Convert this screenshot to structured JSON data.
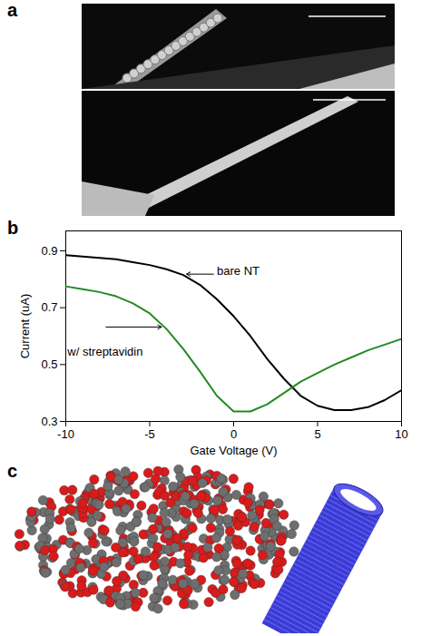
{
  "panel_labels": [
    "a",
    "b",
    "c"
  ],
  "chart_data": {
    "type": "line",
    "x": [
      -10,
      -9,
      -8,
      -7,
      -6,
      -5,
      -4,
      -3,
      -2,
      -1,
      0,
      1,
      2,
      3,
      4,
      5,
      6,
      7,
      8,
      9,
      10
    ],
    "series": [
      {
        "color": "#000000",
        "values": [
          0.885,
          0.88,
          0.875,
          0.87,
          0.86,
          0.85,
          0.835,
          0.815,
          0.78,
          0.73,
          0.67,
          0.6,
          0.52,
          0.45,
          0.39,
          0.355,
          0.34,
          0.34,
          0.35,
          0.375,
          0.41
        ]
      },
      {
        "color": "#228b22",
        "values": [
          0.775,
          0.765,
          0.755,
          0.74,
          0.715,
          0.68,
          0.625,
          0.555,
          0.475,
          0.39,
          0.335,
          0.335,
          0.36,
          0.4,
          0.44,
          0.47,
          0.5,
          0.525,
          0.55,
          0.57,
          0.59
        ]
      }
    ],
    "x_label": "Gate Voltage (V)",
    "y_label": "Current (uA)",
    "xlim": [
      -10,
      10
    ],
    "xticks": [
      -10,
      -5,
      0,
      5,
      10
    ],
    "ylim": [
      0.3,
      0.97
    ],
    "yticks": [
      0.3,
      0.5,
      0.7,
      0.9
    ],
    "annotations": [
      {
        "text": "bare NT",
        "x": -1.0,
        "y": 0.83,
        "arrow_x": -2.8,
        "arrow_y": 0.818
      },
      {
        "text": "w/ streptavidin",
        "x": -9.9,
        "y": 0.545,
        "arrow_x": -4.3,
        "arrow_y": 0.632
      }
    ]
  }
}
